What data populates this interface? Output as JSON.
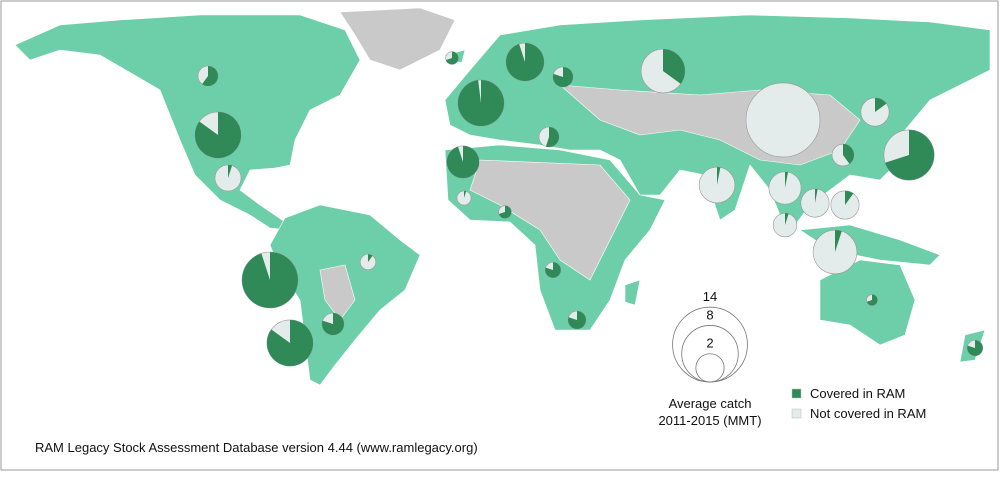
{
  "footer": "RAM Legacy Stock Assessment Database version 4.44 (www.ramlegacy.org)",
  "legend": {
    "sizes": [
      14,
      8,
      2
    ],
    "caption": [
      "Average catch",
      "2011-2015 (MMT)"
    ],
    "keys": [
      {
        "label": "Covered in RAM",
        "color": "#2f8a57"
      },
      {
        "label": "Not covered in RAM",
        "color": "#e3ebeb"
      }
    ]
  },
  "pies": [
    {
      "catch": 1,
      "covered": 60
    },
    {
      "catch": 5.3,
      "covered": 85
    },
    {
      "catch": 1.7,
      "covered": 5
    },
    {
      "catch": 7.8,
      "covered": 95
    },
    {
      "catch": 5.3,
      "covered": 85
    },
    {
      "catch": 1.2,
      "covered": 80
    },
    {
      "catch": 0.6,
      "covered": 10
    },
    {
      "catch": 0.4,
      "covered": 70
    },
    {
      "catch": 3.6,
      "covered": 95
    },
    {
      "catch": 1,
      "covered": 80
    },
    {
      "catch": 4.8,
      "covered": 35
    },
    {
      "catch": 5.3,
      "covered": 98
    },
    {
      "catch": 1,
      "covered": 55
    },
    {
      "catch": 2.6,
      "covered": 95
    },
    {
      "catch": 13.7,
      "covered": 0
    },
    {
      "catch": 6.3,
      "covered": 70
    },
    {
      "catch": 1.2,
      "covered": 40
    },
    {
      "catch": 2,
      "covered": 15
    },
    {
      "catch": 3.2,
      "covered": 3
    },
    {
      "catch": 2.6,
      "covered": 3
    },
    {
      "catch": 2,
      "covered": 3
    },
    {
      "catch": 2,
      "covered": 10
    },
    {
      "catch": 4.8,
      "covered": 5
    },
    {
      "catch": 1.4,
      "covered": 5
    },
    {
      "catch": 0.8,
      "covered": 80
    },
    {
      "catch": 0.6,
      "covered": 80
    },
    {
      "catch": 0.5,
      "covered": 5
    },
    {
      "catch": 0.6,
      "covered": 80
    },
    {
      "catch": 0.3,
      "covered": 70
    },
    {
      "catch": 0.4,
      "covered": 70
    }
  ]
}
